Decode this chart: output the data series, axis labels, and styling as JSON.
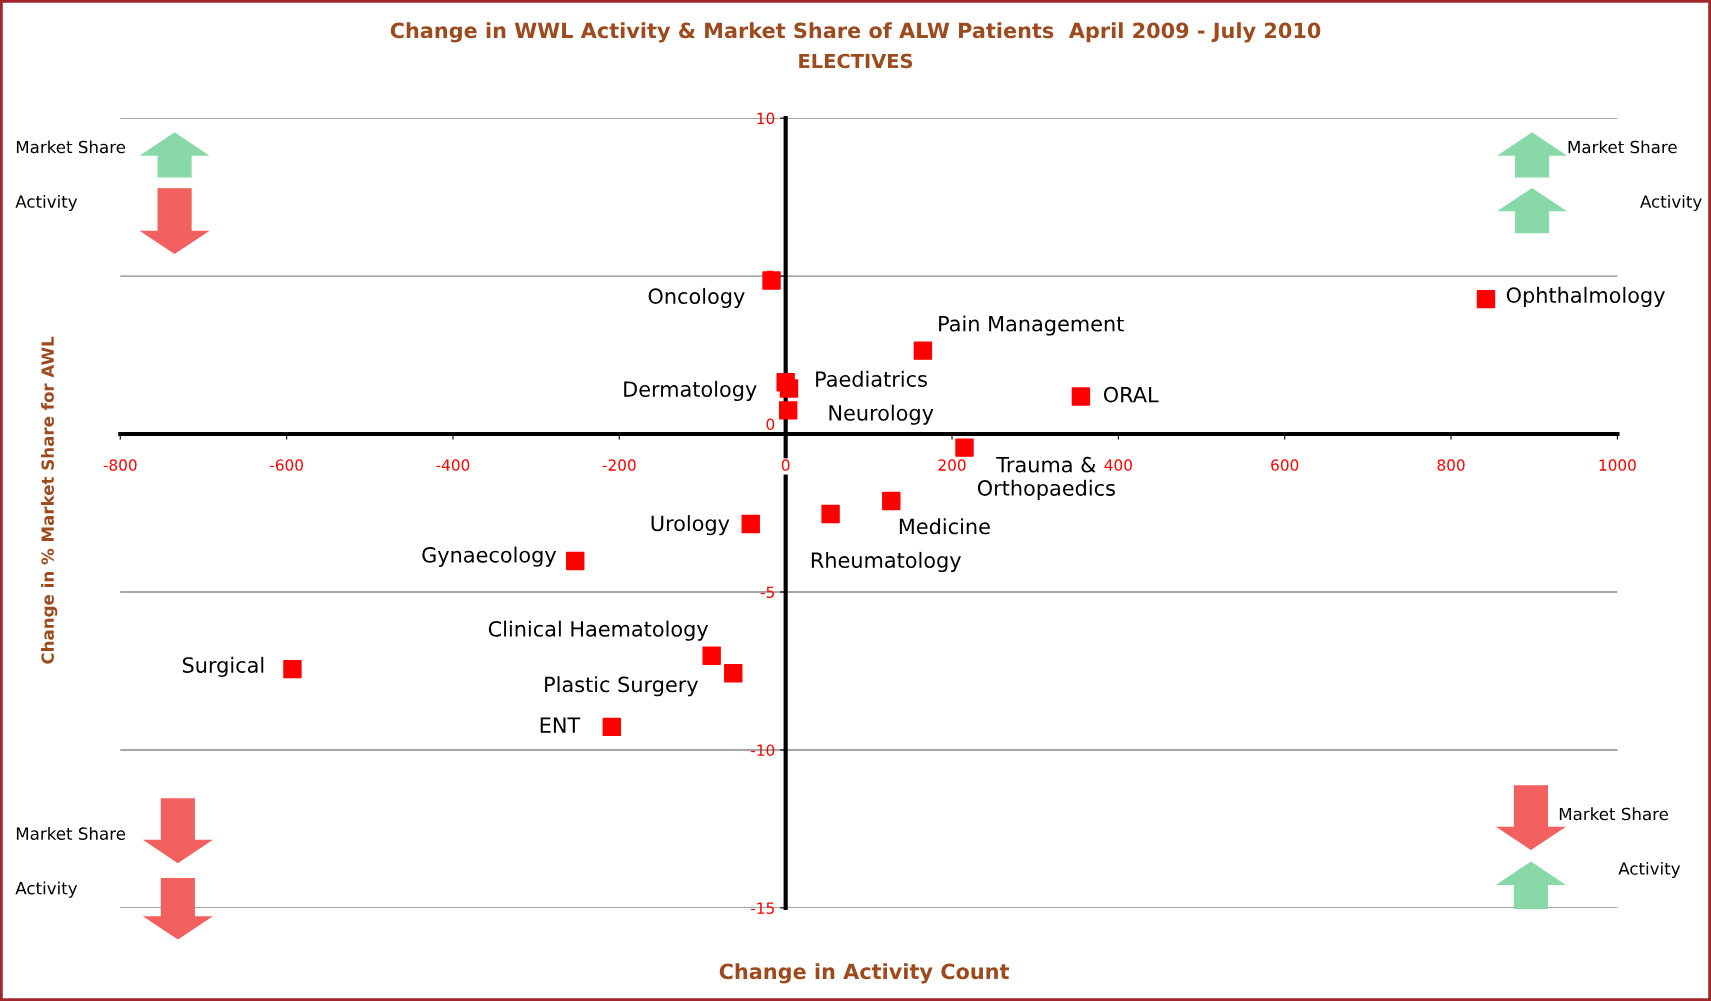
{
  "chart_data": {
    "type": "scatter",
    "title": "Change in WWL Activity & Market Share of ALW Patients  April 2009 - July 2010",
    "subtitle": "ELECTIVES",
    "xlabel": "Change in Activity Count",
    "ylabel": "Change in % Market Share for AWL",
    "xlim": [
      -800,
      1000
    ],
    "xticks": [
      -800,
      -600,
      -400,
      -200,
      0,
      200,
      400,
      600,
      800,
      1000
    ],
    "ylim": [
      -15,
      10
    ],
    "yticks": [
      -15,
      -10,
      -5,
      0,
      5,
      10
    ],
    "grid": "y",
    "marker": "square",
    "x": [
      -17,
      842,
      165,
      0,
      4,
      3,
      355,
      215,
      127,
      54,
      -42,
      -253,
      -89,
      -63,
      -209,
      -593
    ],
    "series": [
      {
        "color": "#ff0000",
        "values": [
          4.86,
          4.27,
          2.64,
          1.64,
          1.44,
          0.75,
          1.19,
          -0.43,
          -2.12,
          -2.53,
          -2.85,
          -4.02,
          -7.02,
          -7.57,
          -9.27,
          -7.44
        ]
      }
    ],
    "annotations": [
      {
        "text": "Oncology",
        "x": -17,
        "y": 4.86
      },
      {
        "text": "Ophthalmology",
        "x": 842,
        "y": 4.27
      },
      {
        "text": "Pain Management",
        "x": 165,
        "y": 2.64
      },
      {
        "text": "Dermatology",
        "x": 0,
        "y": 1.64
      },
      {
        "text": "Paediatrics",
        "x": 4,
        "y": 1.44
      },
      {
        "text": "Neurology",
        "x": 3,
        "y": 0.75
      },
      {
        "text": "ORAL",
        "x": 355,
        "y": 1.19
      },
      {
        "text": "Trauma &\nOrthopaedics",
        "x": 215,
        "y": -0.43
      },
      {
        "text": "Medicine",
        "x": 127,
        "y": -2.12
      },
      {
        "text": "Rheumatology",
        "x": 54,
        "y": -2.53
      },
      {
        "text": "Urology",
        "x": -42,
        "y": -2.85
      },
      {
        "text": "Gynaecology",
        "x": -253,
        "y": -4.02
      },
      {
        "text": "Clinical Haematology",
        "x": -89,
        "y": -7.02
      },
      {
        "text": "Plastic Surgery",
        "x": -63,
        "y": -7.57
      },
      {
        "text": "ENT",
        "x": -209,
        "y": -9.27
      },
      {
        "text": "Surgical",
        "x": -593,
        "y": -7.44
      },
      "Market Share",
      "Activity",
      "Market Share",
      "Activity",
      "Market Share",
      "Activity",
      "Market Share",
      "Activity"
    ]
  }
}
